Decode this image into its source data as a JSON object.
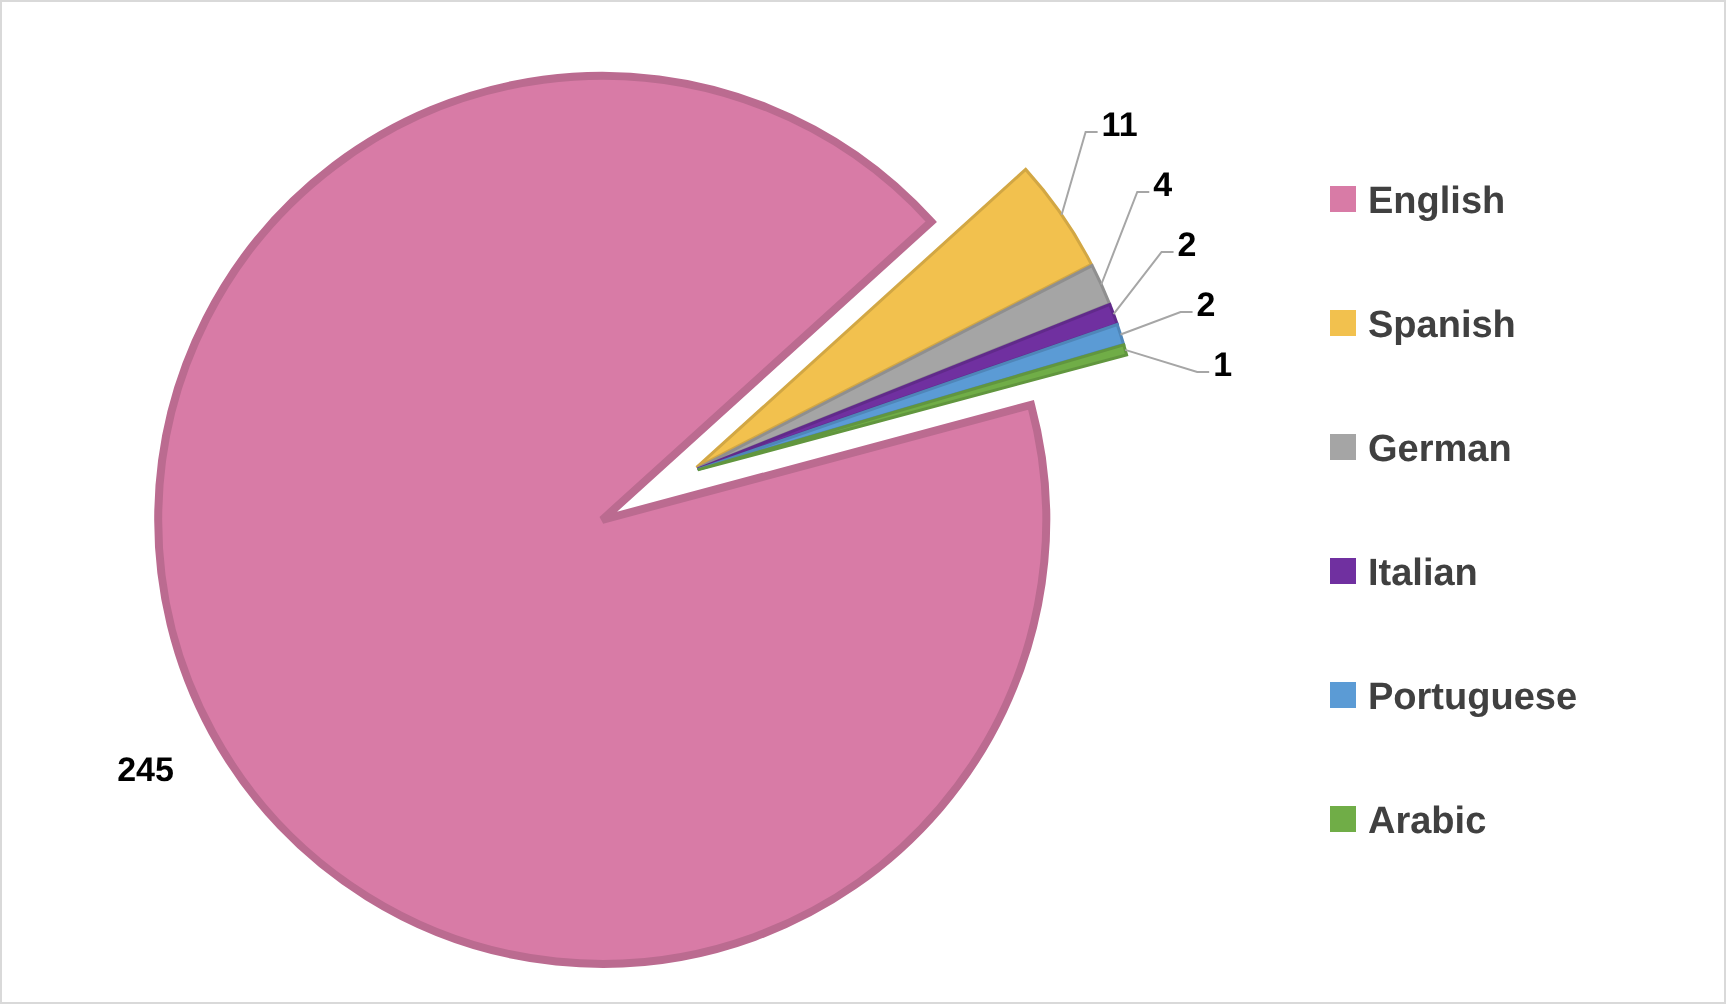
{
  "chart_data": {
    "type": "pie",
    "categories": [
      "English",
      "Spanish",
      "German",
      "Italian",
      "Portuguese",
      "Arabic"
    ],
    "values": [
      245,
      11,
      4,
      2,
      2,
      1
    ],
    "colors": [
      "#d87ba6",
      "#f2c14e",
      "#a5a5a5",
      "#7030a0",
      "#5b9bd5",
      "#70ad47"
    ],
    "data_labels": true,
    "legend": "right"
  }
}
